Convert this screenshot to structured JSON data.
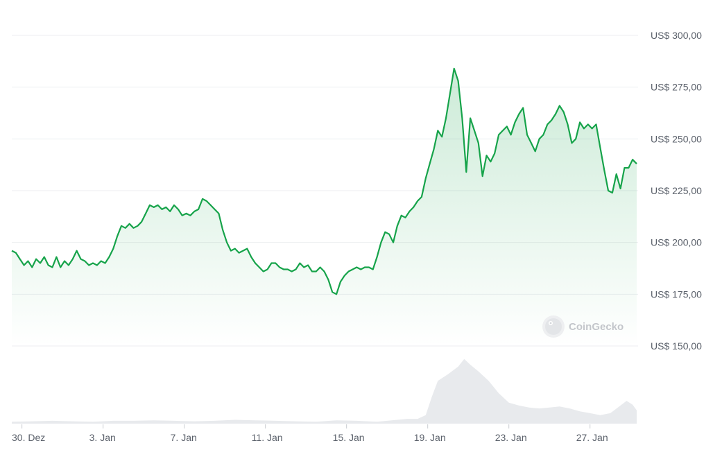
{
  "chart_data": {
    "type": "area",
    "y_unit_prefix": "US$",
    "ylim": [
      150,
      300
    ],
    "y_ticks": [
      "US$ 300,00",
      "US$ 275,00",
      "US$ 250,00",
      "US$ 225,00",
      "US$ 200,00",
      "US$ 175,00",
      "US$ 150,00"
    ],
    "y_tick_values": [
      300,
      275,
      250,
      225,
      200,
      175,
      150
    ],
    "x_ticks": [
      "30. Dez",
      "3. Jan",
      "7. Jan",
      "11. Jan",
      "15. Jan",
      "19. Jan",
      "23. Jan",
      "27. Jan"
    ],
    "x_tick_days": [
      1,
      5,
      9,
      13,
      17,
      21,
      25,
      29
    ],
    "grid": true,
    "line_color": "#16a34a",
    "fill_color": "#16a34a",
    "volume_color": "#e8eaed",
    "watermark": "CoinGecko",
    "series": [
      {
        "price_points": [
          [
            0.0,
            196
          ],
          [
            0.2,
            195
          ],
          [
            0.4,
            192
          ],
          [
            0.6,
            189
          ],
          [
            0.8,
            191
          ],
          [
            1.0,
            188
          ],
          [
            1.2,
            192
          ],
          [
            1.4,
            190
          ],
          [
            1.6,
            193
          ],
          [
            1.8,
            189
          ],
          [
            2.0,
            188
          ],
          [
            2.2,
            193
          ],
          [
            2.4,
            188
          ],
          [
            2.6,
            191
          ],
          [
            2.8,
            189
          ],
          [
            3.0,
            192
          ],
          [
            3.2,
            196
          ],
          [
            3.4,
            192
          ],
          [
            3.6,
            191
          ],
          [
            3.8,
            189
          ],
          [
            4.0,
            190
          ],
          [
            4.2,
            189
          ],
          [
            4.4,
            191
          ],
          [
            4.6,
            190
          ],
          [
            4.8,
            193
          ],
          [
            5.0,
            197
          ],
          [
            5.2,
            203
          ],
          [
            5.4,
            208
          ],
          [
            5.6,
            207
          ],
          [
            5.8,
            209
          ],
          [
            6.0,
            207
          ],
          [
            6.2,
            208
          ],
          [
            6.4,
            210
          ],
          [
            6.6,
            214
          ],
          [
            6.8,
            218
          ],
          [
            7.0,
            217
          ],
          [
            7.2,
            218
          ],
          [
            7.4,
            216
          ],
          [
            7.6,
            217
          ],
          [
            7.8,
            215
          ],
          [
            8.0,
            218
          ],
          [
            8.2,
            216
          ],
          [
            8.4,
            213
          ],
          [
            8.6,
            214
          ],
          [
            8.8,
            213
          ],
          [
            9.0,
            215
          ],
          [
            9.2,
            216
          ],
          [
            9.4,
            221
          ],
          [
            9.6,
            220
          ],
          [
            9.8,
            218
          ],
          [
            10.0,
            216
          ],
          [
            10.2,
            214
          ],
          [
            10.4,
            206
          ],
          [
            10.6,
            200
          ],
          [
            10.8,
            196
          ],
          [
            11.0,
            197
          ],
          [
            11.2,
            195
          ],
          [
            11.4,
            196
          ],
          [
            11.6,
            197
          ],
          [
            11.8,
            193
          ],
          [
            12.0,
            190
          ],
          [
            12.2,
            188
          ],
          [
            12.4,
            186
          ],
          [
            12.6,
            187
          ],
          [
            12.8,
            190
          ],
          [
            13.0,
            190
          ],
          [
            13.2,
            188
          ],
          [
            13.4,
            187
          ],
          [
            13.6,
            187
          ],
          [
            13.8,
            186
          ],
          [
            14.0,
            187
          ],
          [
            14.2,
            190
          ],
          [
            14.4,
            188
          ],
          [
            14.6,
            189
          ],
          [
            14.8,
            186
          ],
          [
            15.0,
            186
          ],
          [
            15.2,
            188
          ],
          [
            15.4,
            186
          ],
          [
            15.6,
            182
          ],
          [
            15.8,
            176
          ],
          [
            16.0,
            175
          ],
          [
            16.2,
            181
          ],
          [
            16.4,
            184
          ],
          [
            16.6,
            186
          ],
          [
            16.8,
            187
          ],
          [
            17.0,
            188
          ],
          [
            17.2,
            187
          ],
          [
            17.4,
            188
          ],
          [
            17.6,
            188
          ],
          [
            17.8,
            187
          ],
          [
            18.0,
            193
          ],
          [
            18.2,
            200
          ],
          [
            18.4,
            205
          ],
          [
            18.6,
            204
          ],
          [
            18.8,
            200
          ],
          [
            19.0,
            208
          ],
          [
            19.2,
            213
          ],
          [
            19.4,
            212
          ],
          [
            19.6,
            215
          ],
          [
            19.8,
            217
          ],
          [
            20.0,
            220
          ],
          [
            20.2,
            222
          ],
          [
            20.4,
            231
          ],
          [
            20.6,
            238
          ],
          [
            20.8,
            245
          ],
          [
            21.0,
            254
          ],
          [
            21.2,
            251
          ],
          [
            21.4,
            260
          ],
          [
            21.6,
            272
          ],
          [
            21.8,
            284
          ],
          [
            22.0,
            278
          ],
          [
            22.2,
            260
          ],
          [
            22.4,
            234
          ],
          [
            22.6,
            260
          ],
          [
            22.8,
            254
          ],
          [
            23.0,
            248
          ],
          [
            23.2,
            232
          ],
          [
            23.4,
            242
          ],
          [
            23.6,
            239
          ],
          [
            23.8,
            243
          ],
          [
            24.0,
            252
          ],
          [
            24.2,
            254
          ],
          [
            24.4,
            256
          ],
          [
            24.6,
            252
          ],
          [
            24.8,
            258
          ],
          [
            25.0,
            262
          ],
          [
            25.2,
            265
          ],
          [
            25.4,
            252
          ],
          [
            25.6,
            248
          ],
          [
            25.8,
            244
          ],
          [
            26.0,
            250
          ],
          [
            26.2,
            252
          ],
          [
            26.4,
            257
          ],
          [
            26.6,
            259
          ],
          [
            26.8,
            262
          ],
          [
            27.0,
            266
          ],
          [
            27.2,
            263
          ],
          [
            27.4,
            257
          ],
          [
            27.6,
            248
          ],
          [
            27.8,
            250
          ],
          [
            28.0,
            258
          ],
          [
            28.2,
            255
          ],
          [
            28.4,
            257
          ],
          [
            28.6,
            255
          ],
          [
            28.8,
            257
          ],
          [
            29.0,
            246
          ],
          [
            29.2,
            235
          ],
          [
            29.4,
            225
          ],
          [
            29.6,
            224
          ],
          [
            29.8,
            233
          ],
          [
            30.0,
            226
          ],
          [
            30.2,
            236
          ],
          [
            30.4,
            236
          ],
          [
            30.6,
            240
          ],
          [
            30.8,
            238
          ]
        ],
        "volume_points": [
          [
            0.0,
            2
          ],
          [
            1.0,
            2.5
          ],
          [
            2.0,
            3
          ],
          [
            3.0,
            2.5
          ],
          [
            4.0,
            2
          ],
          [
            5.0,
            3
          ],
          [
            6.0,
            3
          ],
          [
            7.0,
            3.5
          ],
          [
            8.0,
            3
          ],
          [
            9.0,
            2.5
          ],
          [
            10.0,
            3
          ],
          [
            11.0,
            4
          ],
          [
            12.0,
            3.5
          ],
          [
            13.0,
            3
          ],
          [
            14.0,
            2.5
          ],
          [
            15.0,
            2
          ],
          [
            16.0,
            3.5
          ],
          [
            17.0,
            3
          ],
          [
            18.0,
            2
          ],
          [
            18.5,
            3
          ],
          [
            19.0,
            4
          ],
          [
            19.5,
            5
          ],
          [
            20.0,
            5
          ],
          [
            20.4,
            9
          ],
          [
            20.7,
            28
          ],
          [
            21.0,
            45
          ],
          [
            21.5,
            52
          ],
          [
            22.0,
            60
          ],
          [
            22.3,
            68
          ],
          [
            22.6,
            62
          ],
          [
            23.0,
            55
          ],
          [
            23.5,
            45
          ],
          [
            24.0,
            32
          ],
          [
            24.5,
            22
          ],
          [
            25.0,
            19
          ],
          [
            25.5,
            17
          ],
          [
            26.0,
            16
          ],
          [
            26.5,
            17
          ],
          [
            27.0,
            18
          ],
          [
            27.5,
            16
          ],
          [
            28.0,
            13
          ],
          [
            28.5,
            11
          ],
          [
            29.0,
            9
          ],
          [
            29.5,
            11
          ],
          [
            30.0,
            19
          ],
          [
            30.3,
            24
          ],
          [
            30.6,
            20
          ],
          [
            30.8,
            14
          ]
        ]
      }
    ]
  }
}
